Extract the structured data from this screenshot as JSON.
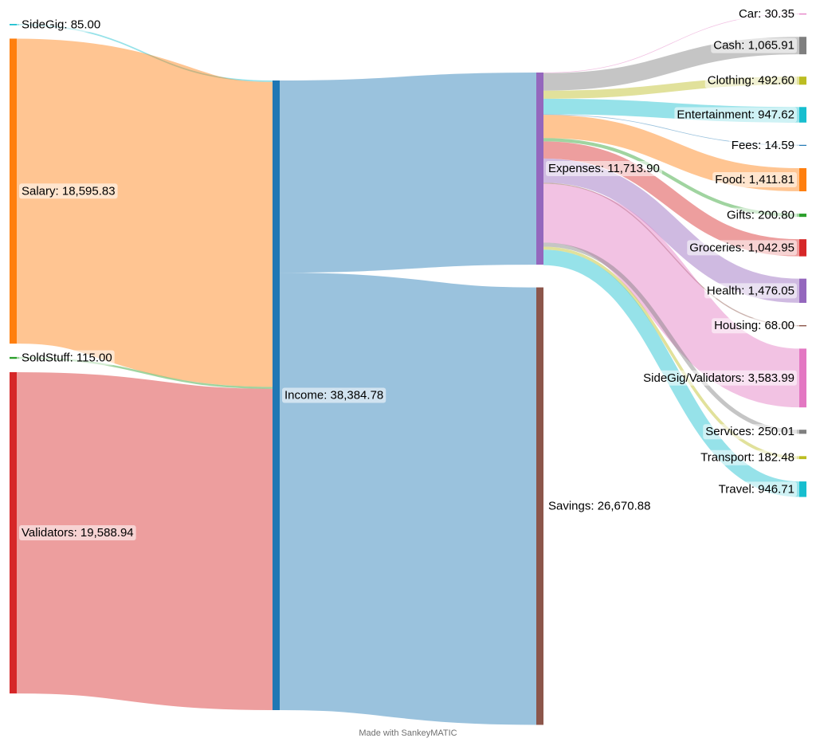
{
  "credit": "Made with SankeyMATIC",
  "colors": {
    "orange": "#ff7f0e",
    "blue": "#1f77b4",
    "green": "#2ca02c",
    "red": "#d62728",
    "purple": "#9467bd",
    "brown": "#8c564b",
    "pink": "#e377c2",
    "gray": "#7f7f7f",
    "olive": "#bcbd22",
    "cyan": "#17becf"
  },
  "nodes": [
    {
      "id": "SideGig",
      "label": "SideGig: 85.00",
      "color": "#17becf"
    },
    {
      "id": "Salary",
      "label": "Salary: 18,595.83",
      "color": "#ff7f0e"
    },
    {
      "id": "SoldStuff",
      "label": "SoldStuff: 115.00",
      "color": "#2ca02c"
    },
    {
      "id": "Validators",
      "label": "Validators: 19,588.94",
      "color": "#d62728"
    },
    {
      "id": "Income",
      "label": "Income: 38,384.78",
      "color": "#1f77b4"
    },
    {
      "id": "Expenses",
      "label": "Expenses: 11,713.90",
      "color": "#9467bd"
    },
    {
      "id": "Savings",
      "label": "Savings: 26,670.88",
      "color": "#8c564b"
    },
    {
      "id": "Car",
      "label": "Car: 30.35",
      "color": "#e377c2"
    },
    {
      "id": "Cash",
      "label": "Cash: 1,065.91",
      "color": "#7f7f7f"
    },
    {
      "id": "Clothing",
      "label": "Clothing: 492.60",
      "color": "#bcbd22"
    },
    {
      "id": "Entertainment",
      "label": "Entertainment: 947.62",
      "color": "#17becf"
    },
    {
      "id": "Fees",
      "label": "Fees: 14.59",
      "color": "#1f77b4"
    },
    {
      "id": "Food",
      "label": "Food: 1,411.81",
      "color": "#ff7f0e"
    },
    {
      "id": "Gifts",
      "label": "Gifts: 200.80",
      "color": "#2ca02c"
    },
    {
      "id": "Groceries",
      "label": "Groceries: 1,042.95",
      "color": "#d62728"
    },
    {
      "id": "Health",
      "label": "Health: 1,476.05",
      "color": "#9467bd"
    },
    {
      "id": "Housing",
      "label": "Housing: 68.00",
      "color": "#8c564b"
    },
    {
      "id": "SideGigValidators",
      "label": "SideGig/Validators: 3,583.99",
      "color": "#e377c2"
    },
    {
      "id": "Services",
      "label": "Services: 250.01",
      "color": "#7f7f7f"
    },
    {
      "id": "Transport",
      "label": "Transport: 182.48",
      "color": "#bcbd22"
    },
    {
      "id": "Travel",
      "label": "Travel: 946.71",
      "color": "#17becf"
    }
  ],
  "flows": [
    {
      "from": "SideGig",
      "to": "Income",
      "value": 85.0
    },
    {
      "from": "Salary",
      "to": "Income",
      "value": 18595.83
    },
    {
      "from": "SoldStuff",
      "to": "Income",
      "value": 115.0
    },
    {
      "from": "Validators",
      "to": "Income",
      "value": 19588.94
    },
    {
      "from": "Income",
      "to": "Expenses",
      "value": 11713.9
    },
    {
      "from": "Income",
      "to": "Savings",
      "value": 26670.88
    },
    {
      "from": "Expenses",
      "to": "Car",
      "value": 30.35
    },
    {
      "from": "Expenses",
      "to": "Cash",
      "value": 1065.91
    },
    {
      "from": "Expenses",
      "to": "Clothing",
      "value": 492.6
    },
    {
      "from": "Expenses",
      "to": "Entertainment",
      "value": 947.62
    },
    {
      "from": "Expenses",
      "to": "Fees",
      "value": 14.59
    },
    {
      "from": "Expenses",
      "to": "Food",
      "value": 1411.81
    },
    {
      "from": "Expenses",
      "to": "Gifts",
      "value": 200.8
    },
    {
      "from": "Expenses",
      "to": "Groceries",
      "value": 1042.95
    },
    {
      "from": "Expenses",
      "to": "Health",
      "value": 1476.05
    },
    {
      "from": "Expenses",
      "to": "Housing",
      "value": 68.0
    },
    {
      "from": "Expenses",
      "to": "SideGigValidators",
      "value": 3583.99
    },
    {
      "from": "Expenses",
      "to": "Services",
      "value": 250.01
    },
    {
      "from": "Expenses",
      "to": "Transport",
      "value": 182.48
    },
    {
      "from": "Expenses",
      "to": "Travel",
      "value": 946.71
    }
  ]
}
